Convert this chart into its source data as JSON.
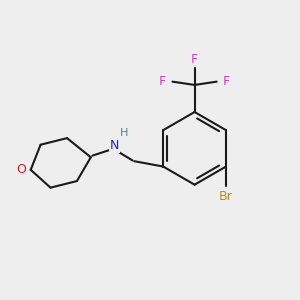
{
  "background_color": "#eeeeee",
  "bond_color": "#1a1a1a",
  "bond_width": 1.5,
  "N_color": "#2222cc",
  "H_color": "#448888",
  "O_color": "#cc2020",
  "Br_color": "#cc8800",
  "F_color": "#cc44cc",
  "figsize": [
    3.0,
    3.0
  ],
  "dpi": 100,
  "xlim": [
    0,
    10
  ],
  "ylim": [
    0,
    10
  ]
}
